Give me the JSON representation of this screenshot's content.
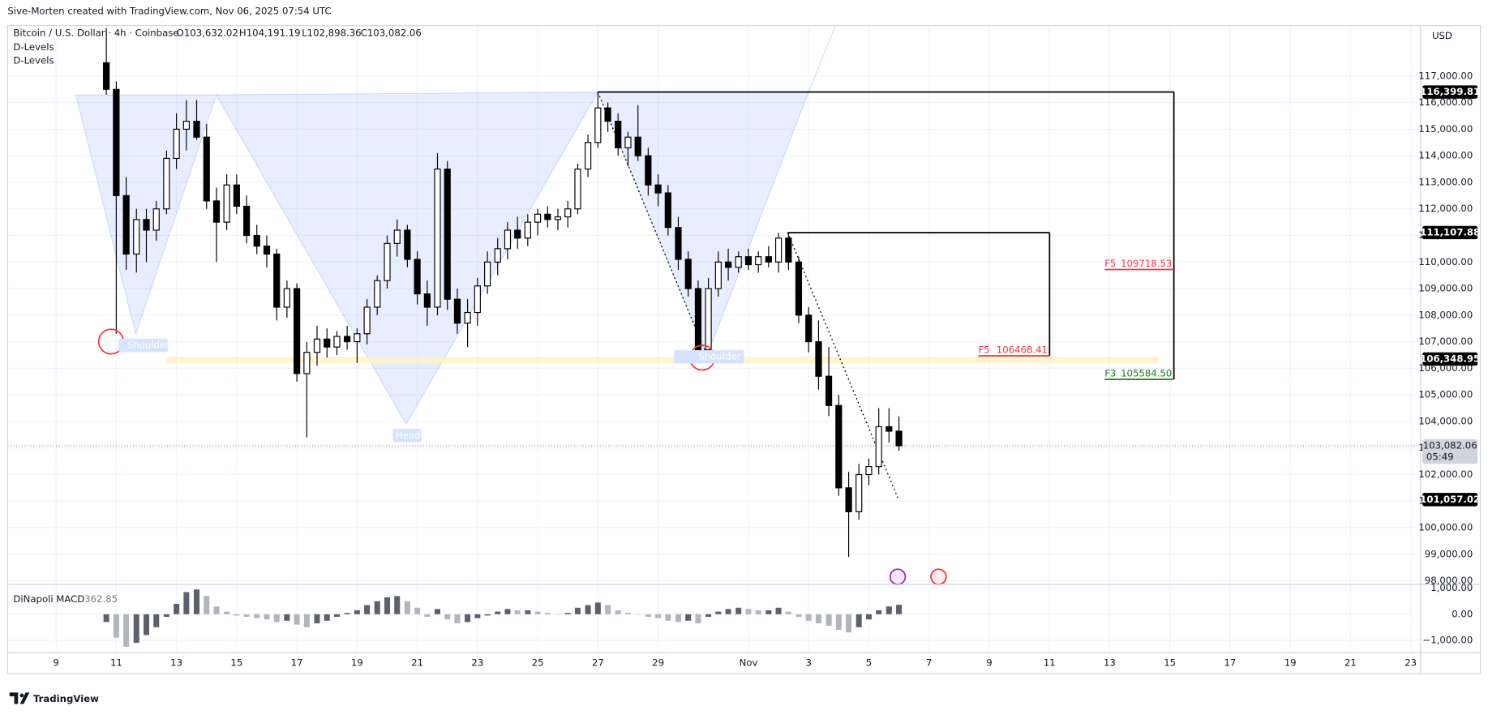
{
  "header": "Sive-Morten created with TradingView.com, Nov 06, 2025 07:54 UTC",
  "footer": "TradingView",
  "chart_data": {
    "type": "candlestick",
    "title": "Bitcoin / U.S. Dollar · 4h · Coinbase",
    "legend_ohlc": [
      "O103,632.02",
      "H104,191.19",
      "L102,898.36",
      "C103,082.06"
    ],
    "indicators": [
      "D-Levels",
      "D-Levels"
    ],
    "currency": "USD",
    "up_color": "#ffffff",
    "down_color": "#000000",
    "x": [
      10.67,
      11,
      11.33,
      11.67,
      12,
      12.33,
      12.67,
      13,
      13.33,
      13.67,
      14,
      14.33,
      14.67,
      15,
      15.33,
      15.67,
      16,
      16.33,
      16.67,
      17,
      17.33,
      17.67,
      18,
      18.33,
      18.67,
      19,
      19.33,
      19.67,
      20,
      20.33,
      20.67,
      21,
      21.33,
      21.67,
      22,
      22.33,
      22.67,
      23,
      23.33,
      23.67,
      24,
      24.33,
      24.67,
      25,
      25.33,
      25.67,
      26,
      26.33,
      26.67,
      27,
      27.33,
      27.67,
      28,
      28.33,
      28.67,
      29,
      29.33,
      29.67,
      30,
      30.33,
      30.67,
      31,
      31.33,
      31.67,
      32,
      32.33,
      32.67,
      33,
      33.33,
      33.67,
      34,
      34.33,
      34.67,
      35,
      35.33,
      35.67,
      36,
      36.33,
      36.67,
      37
    ],
    "open": [
      117500,
      116500,
      112500,
      110300,
      111600,
      111200,
      112000,
      113900,
      115000,
      115300,
      114700,
      112300,
      111500,
      112900,
      112100,
      111000,
      110600,
      110300,
      108300,
      109000,
      105800,
      106600,
      107100,
      106800,
      107200,
      107000,
      107300,
      108300,
      109300,
      110700,
      111200,
      110100,
      108800,
      108300,
      113500,
      108600,
      107700,
      108100,
      109100,
      110000,
      110500,
      111200,
      110900,
      111500,
      111800,
      111600,
      111700,
      112000,
      113500,
      114500,
      115800,
      115300,
      114300,
      114700,
      114000,
      112900,
      112600,
      111300,
      110100,
      109000,
      106700,
      109000,
      110000,
      109800,
      110200,
      109900,
      110200,
      110000,
      110900,
      110000,
      108000,
      107000,
      105700,
      104600,
      101500,
      100600,
      102000,
      102300,
      103800,
      103632.02
    ],
    "high": [
      118800,
      116800,
      113200,
      112000,
      112000,
      112300,
      114200,
      115600,
      116100,
      116100,
      115200,
      112800,
      113300,
      113300,
      112500,
      111400,
      111000,
      110500,
      109300,
      109200,
      107000,
      107600,
      107500,
      107400,
      107600,
      107500,
      108600,
      109500,
      111000,
      111600,
      111400,
      110400,
      109300,
      114100,
      113800,
      109000,
      108600,
      109400,
      110400,
      110900,
      111500,
      111700,
      111800,
      112000,
      112100,
      112000,
      112300,
      113700,
      114800,
      116400,
      116000,
      115600,
      114900,
      115900,
      114300,
      113300,
      112900,
      111700,
      110400,
      109300,
      109400,
      110400,
      110500,
      110400,
      110500,
      110400,
      110600,
      111100,
      111100,
      110200,
      108300,
      107800,
      106800,
      105000,
      102100,
      102400,
      102600,
      104500,
      104500,
      104191.19
    ],
    "low": [
      116300,
      107300,
      109700,
      109600,
      110000,
      110800,
      111800,
      113500,
      114200,
      114600,
      112000,
      110000,
      111200,
      111800,
      110700,
      110300,
      109800,
      107800,
      107900,
      105500,
      103400,
      106100,
      106400,
      106500,
      106700,
      106200,
      106900,
      108000,
      109000,
      110200,
      109800,
      108400,
      107600,
      108000,
      108200,
      107300,
      106800,
      107600,
      108800,
      109500,
      110100,
      110500,
      110600,
      111000,
      111300,
      111200,
      111300,
      111800,
      113200,
      114300,
      114900,
      114000,
      113600,
      113800,
      112500,
      112100,
      111000,
      109700,
      108700,
      106300,
      106400,
      108700,
      109300,
      109600,
      109700,
      109600,
      109800,
      109600,
      109700,
      107700,
      106600,
      105200,
      104200,
      101200,
      98900,
      100300,
      101600,
      102000,
      103200,
      102898.36
    ],
    "close": [
      116500,
      112500,
      110300,
      111600,
      111200,
      112000,
      113900,
      115000,
      115300,
      114700,
      112300,
      111500,
      112900,
      112100,
      111000,
      110600,
      110300,
      108300,
      109000,
      105800,
      106600,
      107100,
      106800,
      107200,
      107000,
      107300,
      108300,
      109300,
      110700,
      111200,
      110100,
      108800,
      108300,
      113500,
      108600,
      107700,
      108100,
      109100,
      110000,
      110500,
      111200,
      110900,
      111500,
      111800,
      111600,
      111700,
      112000,
      113500,
      114500,
      115800,
      115300,
      114300,
      114700,
      114000,
      112900,
      112600,
      111300,
      110100,
      109000,
      106700,
      109000,
      110000,
      109800,
      110200,
      109900,
      110200,
      110000,
      110900,
      110000,
      108000,
      107000,
      105700,
      104600,
      101500,
      100600,
      102000,
      102300,
      103800,
      103632.02,
      103082.06
    ],
    "xlim": [
      7.39,
      54.33
    ],
    "xticks": [
      9,
      11,
      13,
      15,
      17,
      19,
      21,
      23,
      25,
      27,
      29,
      {
        "value": 32,
        "label": "Nov"
      },
      {
        "value": 34,
        "label": "3"
      },
      {
        "value": 36,
        "label": "5"
      },
      {
        "value": 38,
        "label": "7"
      },
      {
        "value": 40,
        "label": "9"
      },
      {
        "value": 42,
        "label": "11"
      },
      {
        "value": 44,
        "label": "13"
      },
      {
        "value": 46,
        "label": "15"
      },
      {
        "value": 48,
        "label": "17"
      },
      {
        "value": 50,
        "label": "19"
      },
      {
        "value": 52,
        "label": "21"
      },
      {
        "value": 54,
        "label": "23"
      }
    ],
    "ylim": [
      97900,
      118860
    ],
    "yticks": [
      {
        "value": 98000,
        "label": "98,000.00"
      },
      {
        "value": 99000,
        "label": "99,000.00"
      },
      {
        "value": 100000,
        "label": "100,000.00"
      },
      {
        "value": 101000,
        "label": "101,000.00"
      },
      {
        "value": 102000,
        "label": "102,000.00"
      },
      {
        "value": 103000,
        "label": "103,000.00"
      },
      {
        "value": 104000,
        "label": "104,000.00"
      },
      {
        "value": 105000,
        "label": "105,000.00"
      },
      {
        "value": 106000,
        "label": "106,000.00"
      },
      {
        "value": 107000,
        "label": "107,000.00"
      },
      {
        "value": 108000,
        "label": "108,000.00"
      },
      {
        "value": 109000,
        "label": "109,000.00"
      },
      {
        "value": 110000,
        "label": "110,000.00"
      },
      {
        "value": 111000,
        "label": "111,000.00"
      },
      {
        "value": 112000,
        "label": "112,000.00"
      },
      {
        "value": 113000,
        "label": "113,000.00"
      },
      {
        "value": 114000,
        "label": "114,000.00"
      },
      {
        "value": 115000,
        "label": "115,000.00"
      },
      {
        "value": 116000,
        "label": "116,000.00"
      },
      {
        "value": 117000,
        "label": "117,000.00"
      }
    ],
    "grid": true,
    "price_tags": [
      {
        "value": 116399.81,
        "label": "116,399.81",
        "color": "#000000"
      },
      {
        "value": 111107.88,
        "label": "111,107.88",
        "color": "#000000"
      },
      {
        "value": 106348.95,
        "label": "106,348.95",
        "color": "#000000"
      },
      {
        "value": 101057.02,
        "label": "101,057.02",
        "color": "#000000"
      }
    ],
    "current_price": {
      "value": 103082.06,
      "label": "103,082.06",
      "countdown": "05:49",
      "color": "#d1d4dc"
    },
    "levels": [
      {
        "name": "F5",
        "value": 109718.53,
        "label": "109718.53",
        "color": "#f23645"
      },
      {
        "name": "F5",
        "value": 106468.41,
        "label": "106468.41",
        "color": "#f23645"
      },
      {
        "name": "F3",
        "value": 105584.5,
        "label": "105584.50",
        "color": "#1b7d1b"
      }
    ],
    "pattern_labels": [
      "Shoulder",
      "Head",
      "Shoulder"
    ],
    "macd": {
      "title": "DiNapoli MACD",
      "last": 362.85,
      "rising_color": "#5d606b",
      "falling_color": "#b2b5be",
      "values": [
        -300,
        -900,
        -1250,
        -1100,
        -800,
        -500,
        -100,
        400,
        850,
        950,
        700,
        300,
        100,
        -50,
        -100,
        -150,
        -200,
        -300,
        -250,
        -400,
        -500,
        -350,
        -250,
        -100,
        50,
        150,
        350,
        500,
        650,
        700,
        500,
        250,
        -100,
        200,
        -200,
        -350,
        -300,
        -150,
        -50,
        100,
        200,
        150,
        150,
        100,
        50,
        0,
        50,
        250,
        350,
        450,
        350,
        150,
        50,
        0,
        -100,
        -150,
        -250,
        -300,
        -250,
        -350,
        -100,
        100,
        200,
        250,
        200,
        150,
        150,
        250,
        100,
        -100,
        -250,
        -350,
        -450,
        -600,
        -700,
        -500,
        -200,
        150,
        300,
        362.85
      ],
      "ylim": [
        -1480,
        1110
      ],
      "yticks": [
        {
          "value": 1000,
          "label": "1,000.00"
        },
        {
          "value": 0,
          "label": "0.00"
        },
        {
          "value": -1000,
          "label": "−1,000.00"
        }
      ]
    }
  }
}
